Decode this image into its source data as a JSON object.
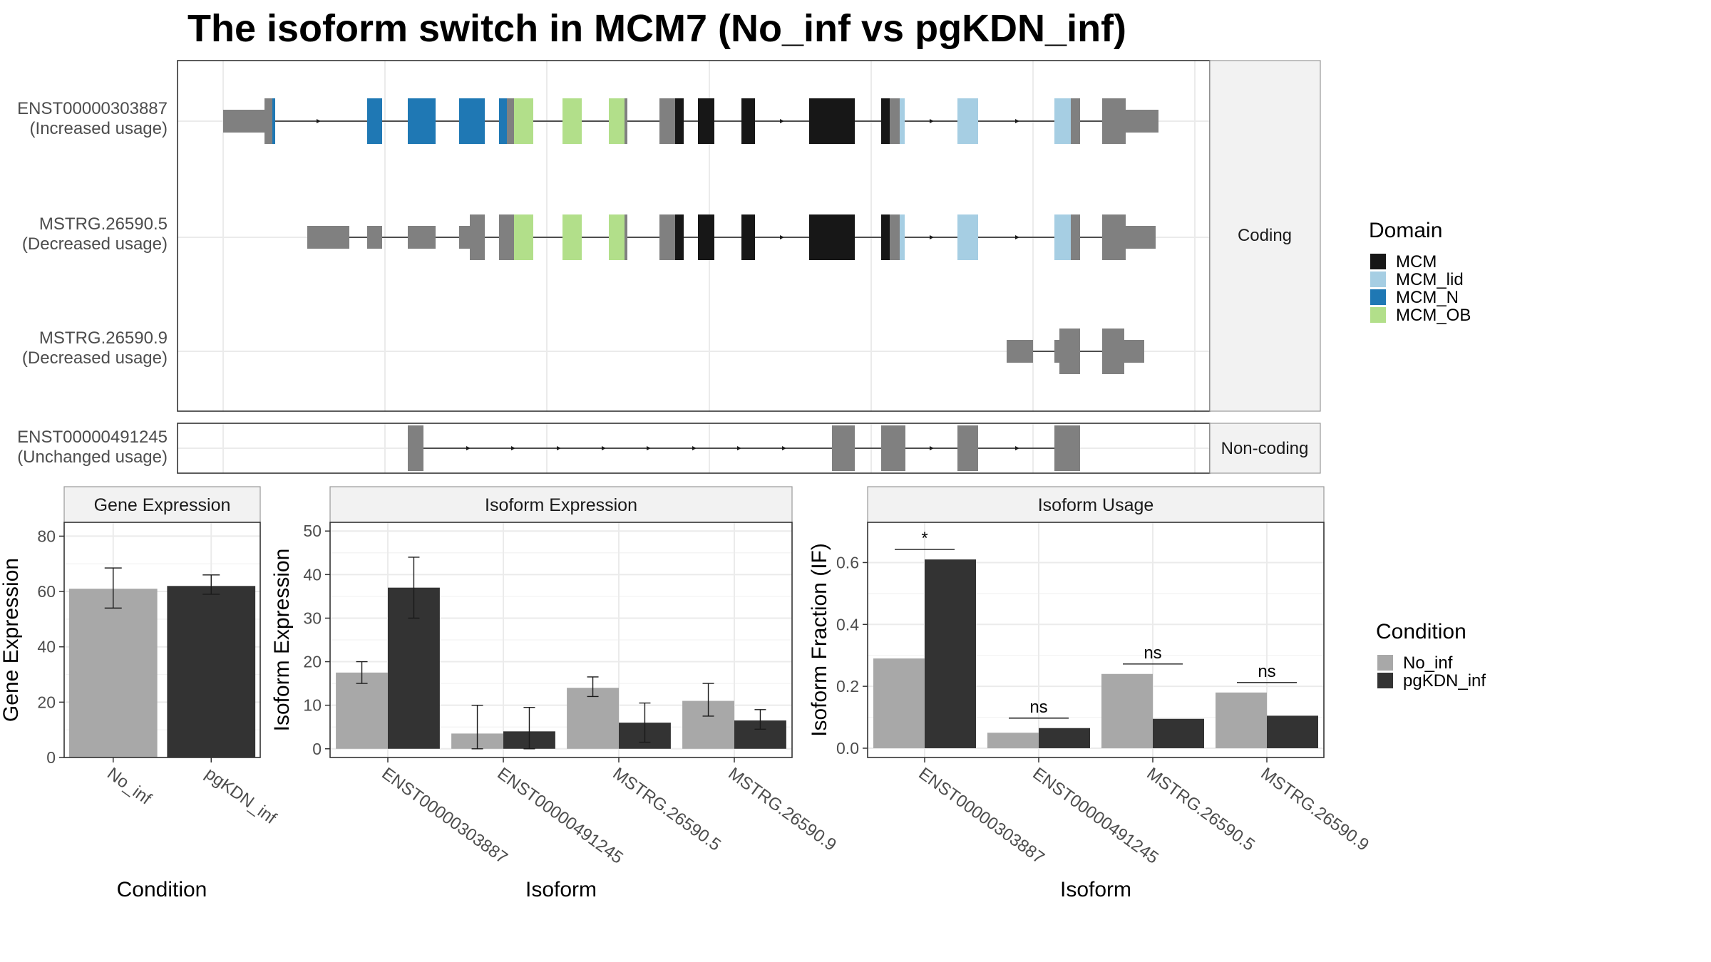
{
  "title": "The isoform switch in MCM7 (No_inf vs pgKDN_inf)",
  "colors": {
    "MCM": "#171717",
    "MCM_lid": "#a6cee3",
    "MCM_N": "#1f78b4",
    "MCM_OB": "#b2df8a",
    "utr": "#808080",
    "No_inf": "#a8a8a8",
    "pgKDN_inf": "#333333"
  },
  "structure": {
    "facets": {
      "coding": "Coding",
      "noncoding": "Non-coding"
    },
    "transcripts": [
      {
        "id": "ENST00000303887",
        "note": "(Increased usage)"
      },
      {
        "id": "MSTRG.26590.5",
        "note": "(Decreased usage)"
      },
      {
        "id": "MSTRG.26590.9",
        "note": "(Decreased usage)"
      },
      {
        "id": "ENST00000491245",
        "note": "(Unchanged usage)"
      }
    ],
    "domain_legend": {
      "title": "Domain",
      "items": [
        "MCM",
        "MCM_lid",
        "MCM_N",
        "MCM_OB"
      ]
    }
  },
  "condition_legend": {
    "title": "Condition",
    "items": [
      "No_inf",
      "pgKDN_inf"
    ]
  },
  "chart_data": [
    {
      "type": "bar",
      "panel": "Gene Expression",
      "xlabel": "Condition",
      "ylabel": "Gene Expression",
      "ylim": [
        0,
        85
      ],
      "yticks": [
        0,
        20,
        40,
        60,
        80
      ],
      "categories": [
        "No_inf",
        "pgKDN_inf"
      ],
      "values": [
        61,
        62
      ],
      "errors": [
        [
          54,
          68.5
        ],
        [
          59,
          66
        ]
      ]
    },
    {
      "type": "bar",
      "panel": "Isoform Expression",
      "xlabel": "Isoform",
      "ylabel": "Isoform Expression",
      "ylim": [
        -2,
        52
      ],
      "yticks": [
        0,
        10,
        20,
        30,
        40,
        50
      ],
      "categories": [
        "ENST00000303887",
        "ENST00000491245",
        "MSTRG.26590.5",
        "MSTRG.26590.9"
      ],
      "series": [
        {
          "name": "No_inf",
          "values": [
            17.5,
            3.5,
            14.0,
            11.0
          ],
          "errors": [
            [
              15,
              20
            ],
            [
              0,
              10
            ],
            [
              12,
              16.5
            ],
            [
              7.5,
              15
            ]
          ]
        },
        {
          "name": "pgKDN_inf",
          "values": [
            37.0,
            4.0,
            6.0,
            6.5
          ],
          "errors": [
            [
              30,
              44
            ],
            [
              0,
              9.5
            ],
            [
              1.5,
              10.5
            ],
            [
              4.5,
              9
            ]
          ]
        }
      ]
    },
    {
      "type": "bar",
      "panel": "Isoform Usage",
      "xlabel": "Isoform",
      "ylabel": "Isoform Fraction (IF)",
      "ylim": [
        -0.03,
        0.73
      ],
      "yticks": [
        0.0,
        0.2,
        0.4,
        0.6
      ],
      "categories": [
        "ENST00000303887",
        "ENST00000491245",
        "MSTRG.26590.5",
        "MSTRG.26590.9"
      ],
      "series": [
        {
          "name": "No_inf",
          "values": [
            0.29,
            0.05,
            0.24,
            0.18
          ]
        },
        {
          "name": "pgKDN_inf",
          "values": [
            0.61,
            0.065,
            0.095,
            0.105
          ]
        }
      ],
      "significance": [
        "*",
        "ns",
        "ns",
        "ns"
      ]
    }
  ]
}
